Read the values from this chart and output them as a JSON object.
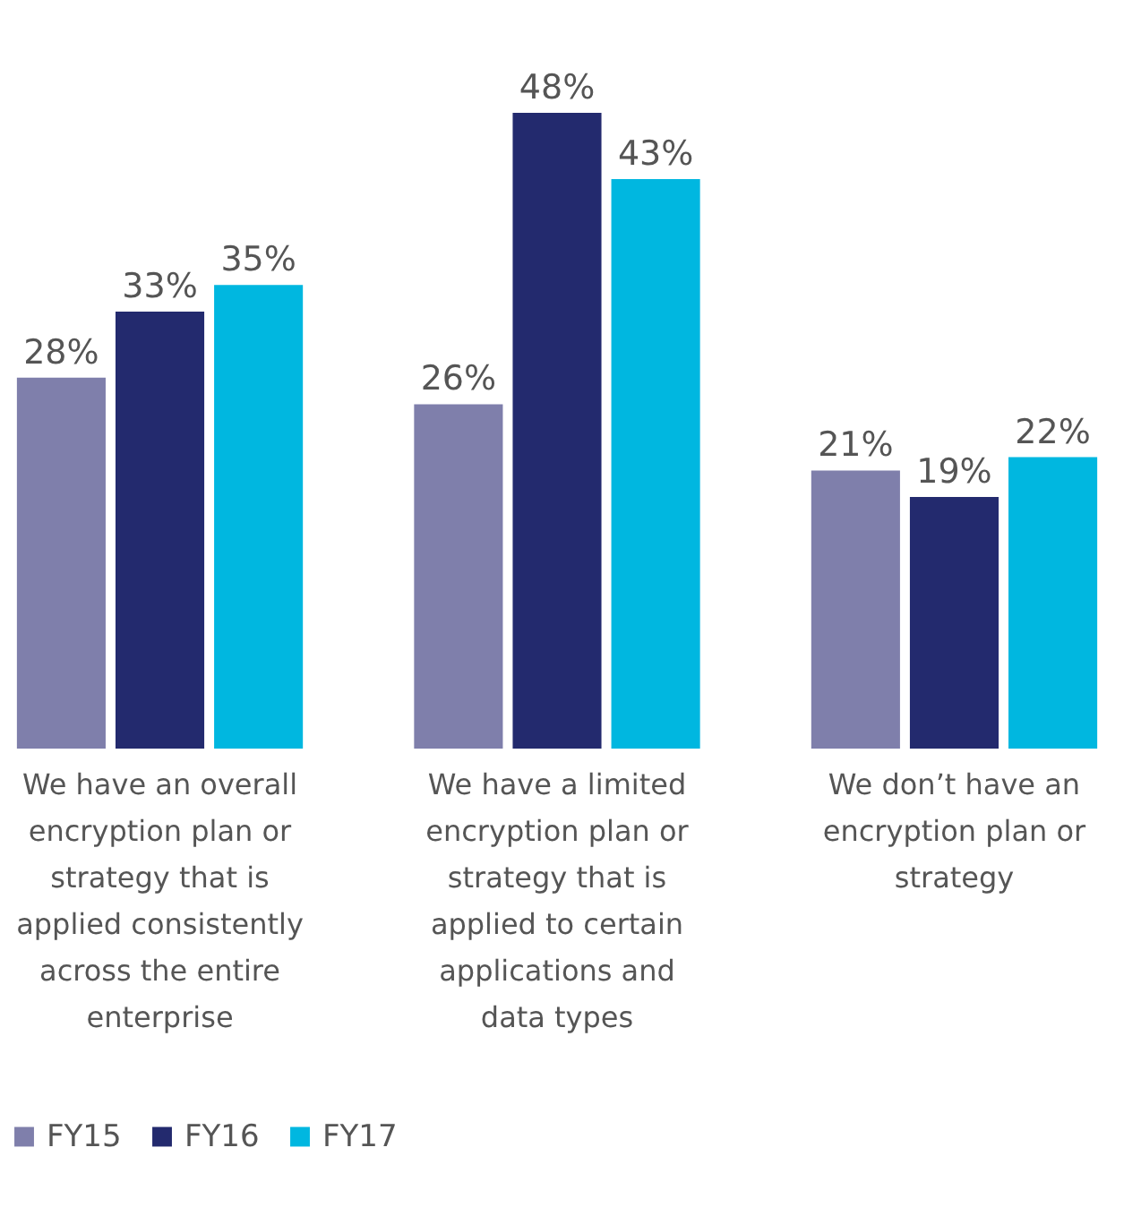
{
  "chart_data": {
    "type": "bar",
    "categories": [
      "We have an overall encryption plan or strategy that is applied consistently across the entire enterprise",
      "We have a limited encryption plan or strategy that is applied to certain applications and data types",
      "We don’t have an encryption plan or strategy"
    ],
    "series": [
      {
        "name": "FY15",
        "color": "#7f7fab",
        "values": [
          28,
          26,
          21
        ],
        "value_labels": [
          "28%",
          "26%",
          "21%"
        ]
      },
      {
        "name": "FY16",
        "color": "#232a6e",
        "values": [
          33,
          48,
          19
        ],
        "value_labels": [
          "33%",
          "48%",
          "19%"
        ]
      },
      {
        "name": "FY17",
        "color": "#00b7e0",
        "values": [
          35,
          43,
          22
        ],
        "value_labels": [
          "35%",
          "43%",
          "22%"
        ]
      }
    ],
    "legend": "bottom"
  }
}
